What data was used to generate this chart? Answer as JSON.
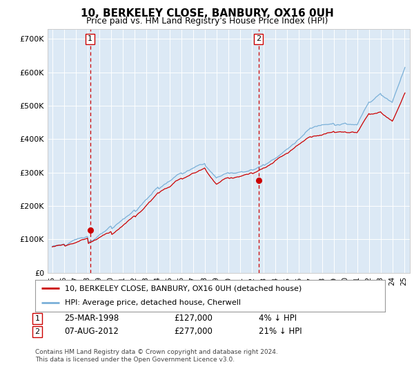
{
  "title": "10, BERKELEY CLOSE, BANBURY, OX16 0UH",
  "subtitle": "Price paid vs. HM Land Registry's House Price Index (HPI)",
  "ylabel_ticks": [
    "£0",
    "£100K",
    "£200K",
    "£300K",
    "£400K",
    "£500K",
    "£600K",
    "£700K"
  ],
  "ytick_values": [
    0,
    100000,
    200000,
    300000,
    400000,
    500000,
    600000,
    700000
  ],
  "ylim": [
    0,
    730000
  ],
  "xlim_start": 1994.6,
  "xlim_end": 2025.5,
  "plot_bg_color": "#dce9f5",
  "grid_color": "#ffffff",
  "sale1_year": 1998.23,
  "sale1_price": 127000,
  "sale2_year": 2012.6,
  "sale2_price": 277000,
  "sale1_label": "1",
  "sale2_label": "2",
  "legend_line1": "10, BERKELEY CLOSE, BANBURY, OX16 0UH (detached house)",
  "legend_line2": "HPI: Average price, detached house, Cherwell",
  "table_row1": [
    "1",
    "25-MAR-1998",
    "£127,000",
    "4% ↓ HPI"
  ],
  "table_row2": [
    "2",
    "07-AUG-2012",
    "£277,000",
    "21% ↓ HPI"
  ],
  "footer": "Contains HM Land Registry data © Crown copyright and database right 2024.\nThis data is licensed under the Open Government Licence v3.0.",
  "hpi_color": "#7ab0d8",
  "price_color": "#cc0000",
  "dashed_vline_color": "#cc0000",
  "xtick_years": [
    1995,
    1996,
    1997,
    1998,
    1999,
    2000,
    2001,
    2002,
    2003,
    2004,
    2005,
    2006,
    2007,
    2008,
    2009,
    2010,
    2011,
    2012,
    2013,
    2014,
    2015,
    2016,
    2017,
    2018,
    2019,
    2020,
    2021,
    2022,
    2023,
    2024,
    2025
  ]
}
